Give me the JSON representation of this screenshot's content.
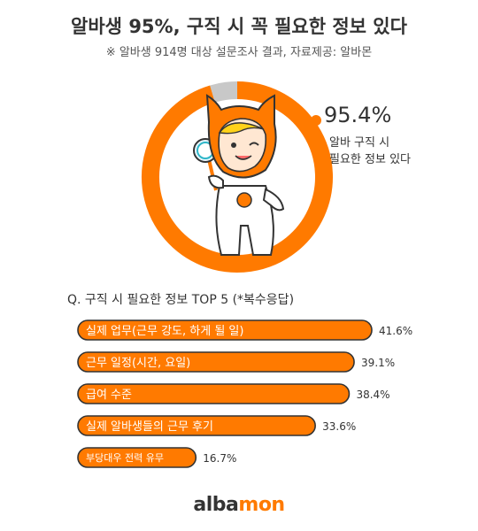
{
  "header": {
    "title": "알바생 95%, 구직 시 꼭 필요한 정보 있다",
    "subtitle": "※ 알바생 914명 대상 설문조사 결과,  자료제공: 알바몬"
  },
  "colors": {
    "accent": "#ff7a00",
    "remainder": "#c8c8c8",
    "text": "#333333"
  },
  "chart_data": [
    {
      "type": "pie",
      "labels": [
        "알바 구직 시 필요한 정보 있다",
        ""
      ],
      "values": [
        95.4,
        4.6
      ],
      "value_label": "95.4%",
      "description_lines": [
        "알바 구직 시",
        "필요한 정보 있다"
      ]
    },
    {
      "type": "bar",
      "title": "Q. 구직 시 필요한 정보 TOP 5 (*복수응답)",
      "categories": [
        "실제 업무(근무 강도, 하게 될 일)",
        "근무 일정(시간, 요일)",
        "급여 수준",
        "실제 알바생들의 근무 후기",
        "부당대우 전력 유무"
      ],
      "values": [
        41.6,
        39.1,
        38.4,
        33.6,
        16.7
      ],
      "value_labels": [
        "41.6%",
        "39.1%",
        "38.4%",
        "33.6%",
        "16.7%"
      ],
      "orientation": "horizontal",
      "xlim": [
        0,
        41.6
      ]
    }
  ],
  "logo": {
    "part1": "alba",
    "part2": "mon"
  },
  "mascot": {
    "description_icon": "albamon-mascot-with-magnifier-icon"
  }
}
